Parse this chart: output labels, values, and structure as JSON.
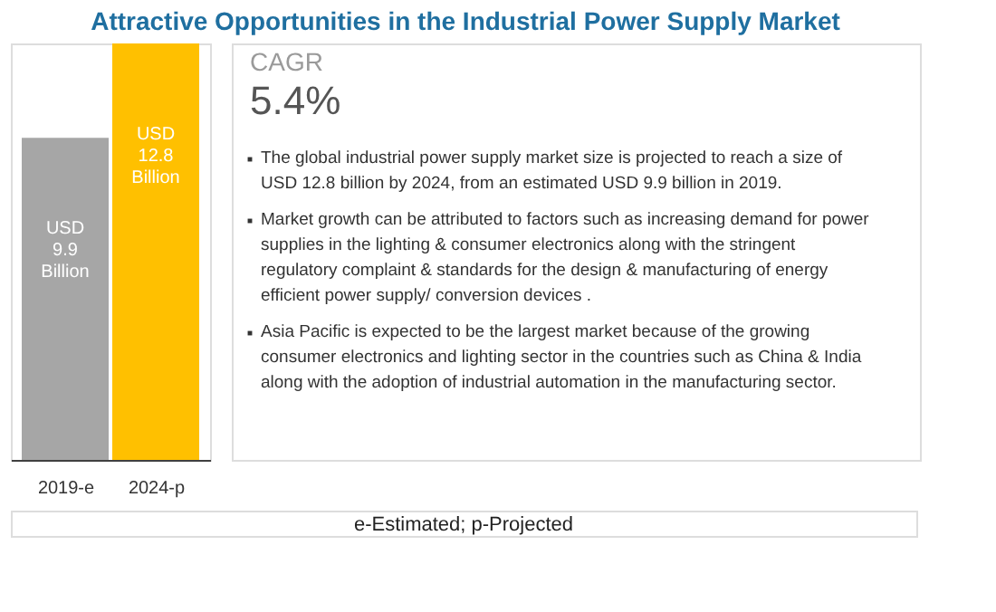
{
  "chart_data": {
    "type": "bar",
    "title": "Attractive Opportunities in the Industrial Power Supply Market",
    "categories": [
      "2019-e",
      "2024-p"
    ],
    "values": [
      9.9,
      12.8
    ],
    "colors": [
      "#a6a6a6",
      "#ffc000"
    ],
    "value_labels": [
      "USD 9.9 Billion",
      "USD 12.8 Billion"
    ],
    "annotations": [
      "CAGR",
      "5.4%",
      "The global industrial power supply market size is projected to reach a size of USD 12.8 billion by 2024, from an estimated USD 9.9 billion in 2019.",
      "Market growth can be attributed to factors such as increasing demand for power supplies in the lighting & consumer electronics along with the stringent regulatory complaint & standards for the design & manufacturing of energy efficient power supply/ conversion devices .",
      "Asia Pacific is expected to be the largest market because of the growing consumer electronics and lighting sector in the countries such as China & India along with the adoption of industrial automation in the manufacturing sector.",
      "e-Estimated; p-Projected"
    ],
    "grid": false
  }
}
